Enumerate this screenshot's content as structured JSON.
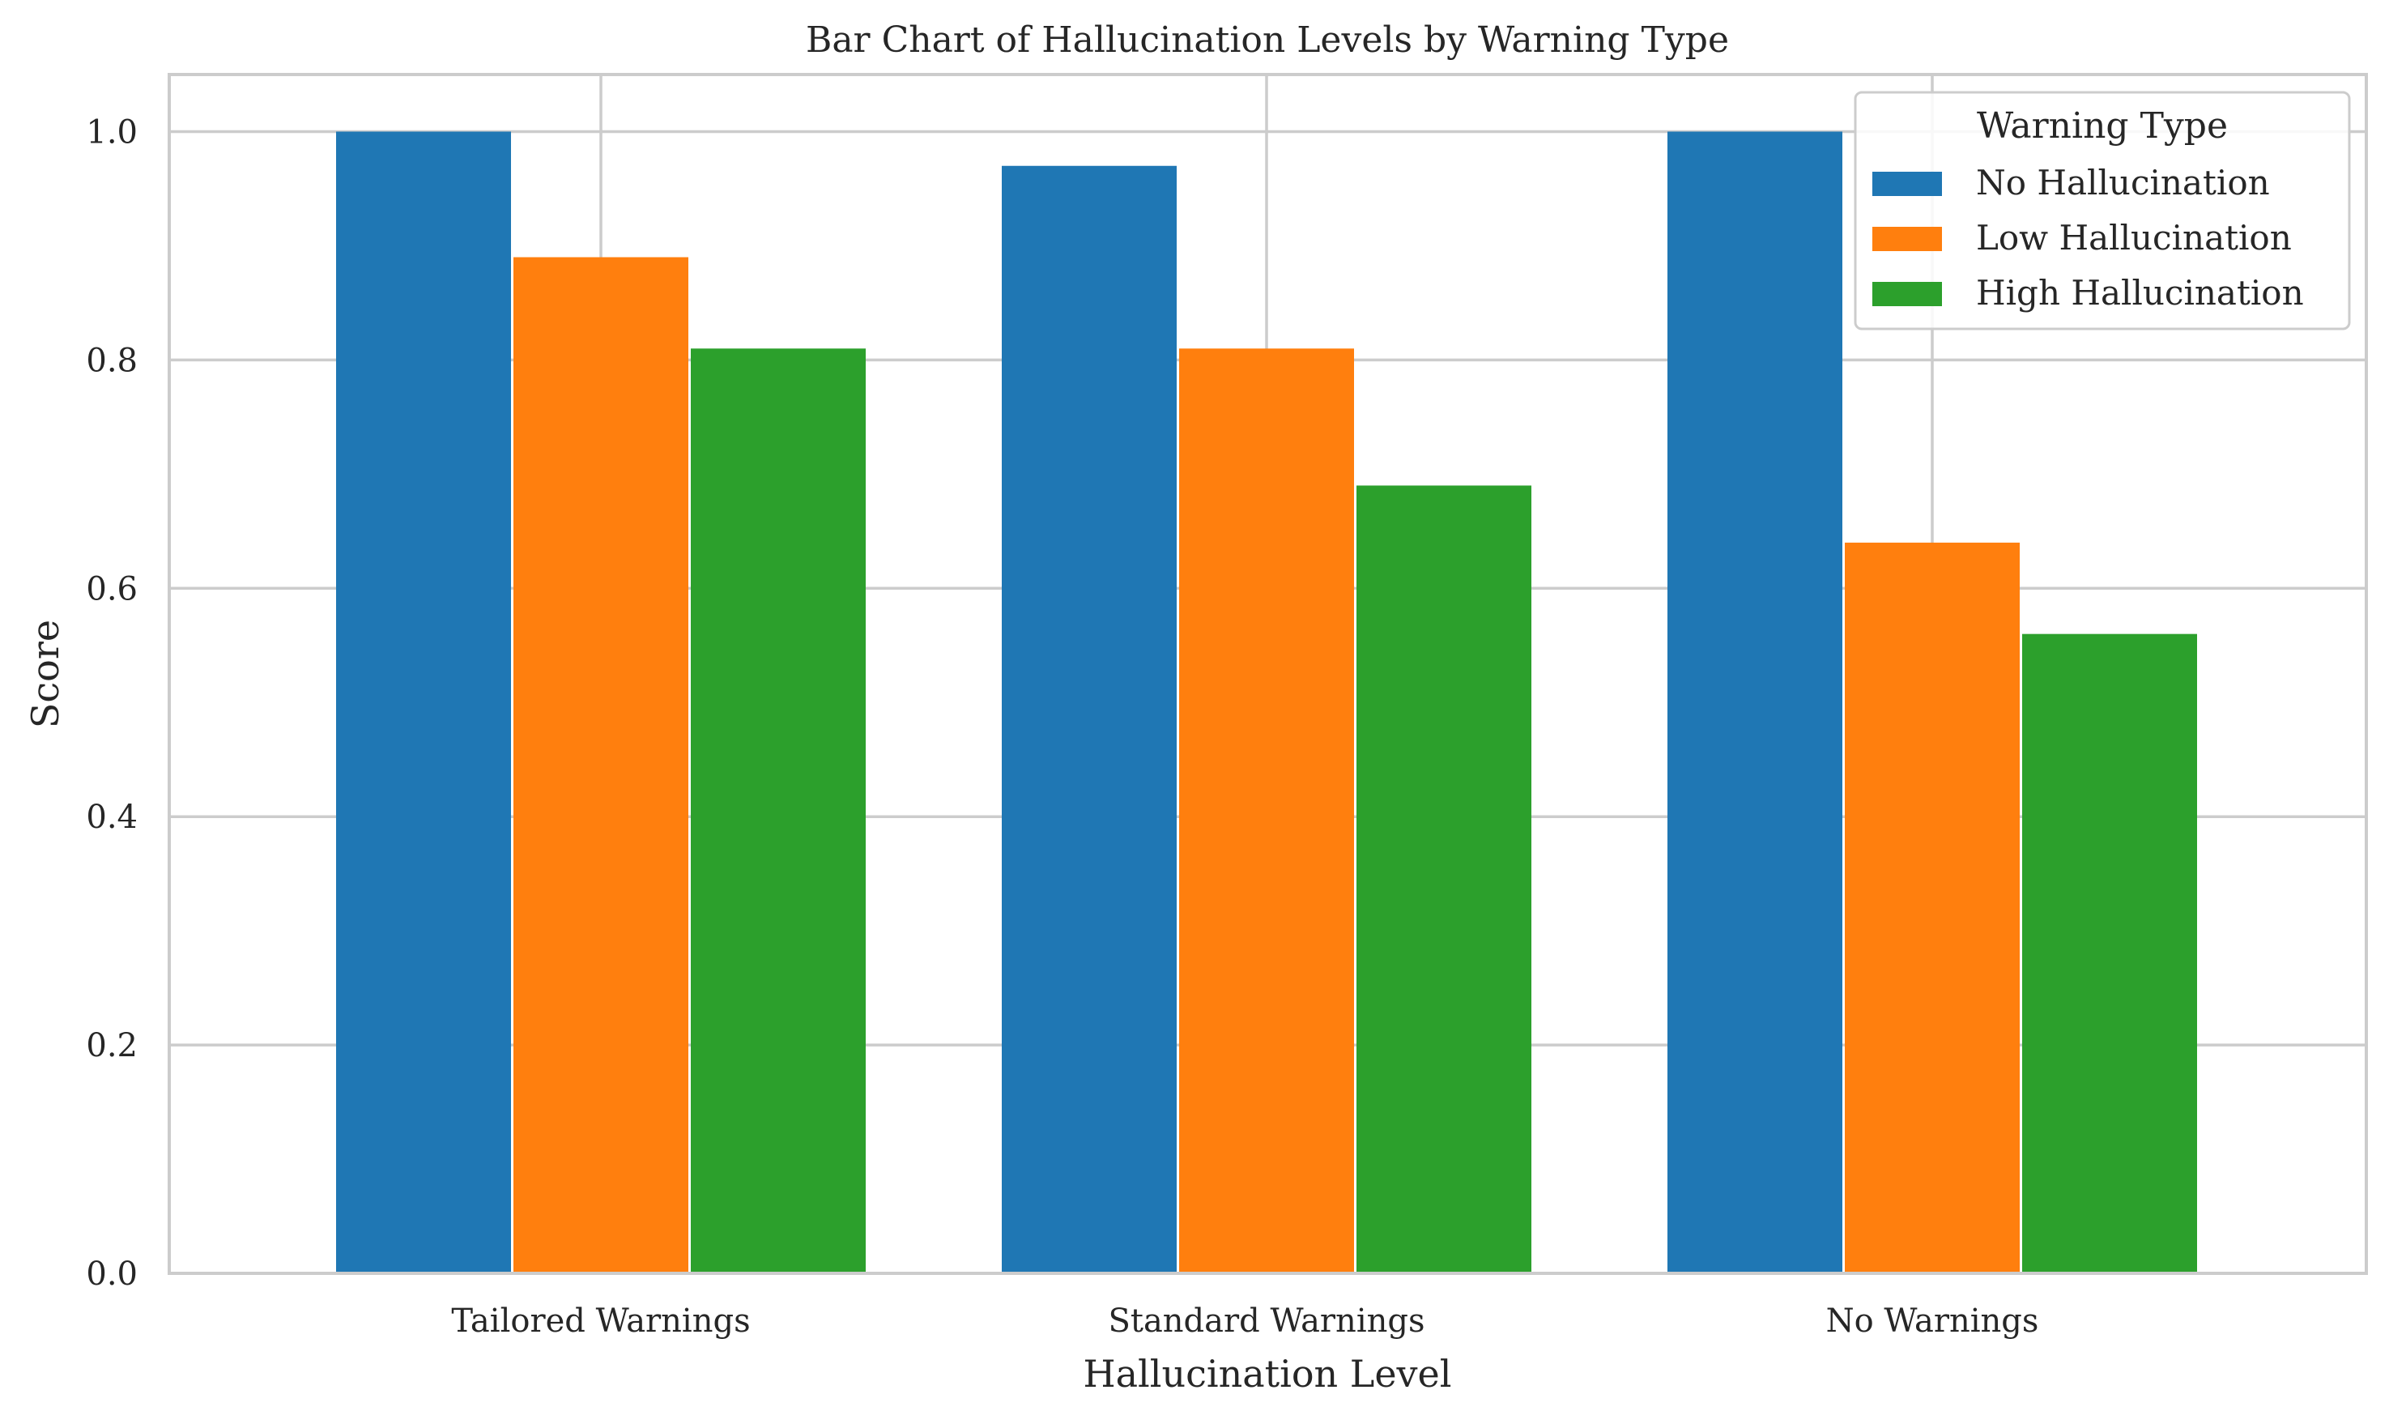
{
  "chart_data": {
    "type": "bar",
    "title": "Bar Chart of Hallucination Levels by Warning Type",
    "xlabel": "Hallucination Level",
    "ylabel": "Score",
    "categories": [
      "Tailored Warnings",
      "Standard Warnings",
      "No Warnings"
    ],
    "series": [
      {
        "name": "No Hallucination",
        "color": "#1f77b4",
        "values": [
          1.0,
          0.97,
          1.0
        ]
      },
      {
        "name": "Low Hallucination",
        "color": "#ff7f0e",
        "values": [
          0.89,
          0.81,
          0.64
        ]
      },
      {
        "name": "High Hallucination",
        "color": "#2ca02c",
        "values": [
          0.81,
          0.69,
          0.56
        ]
      }
    ],
    "ylim": [
      0,
      1.05
    ],
    "yticks": [
      "0.0",
      "0.2",
      "0.4",
      "0.6",
      "0.8",
      "1.0"
    ],
    "grid": true,
    "legend": {
      "title": "Warning Type",
      "placement": "top-right"
    }
  }
}
